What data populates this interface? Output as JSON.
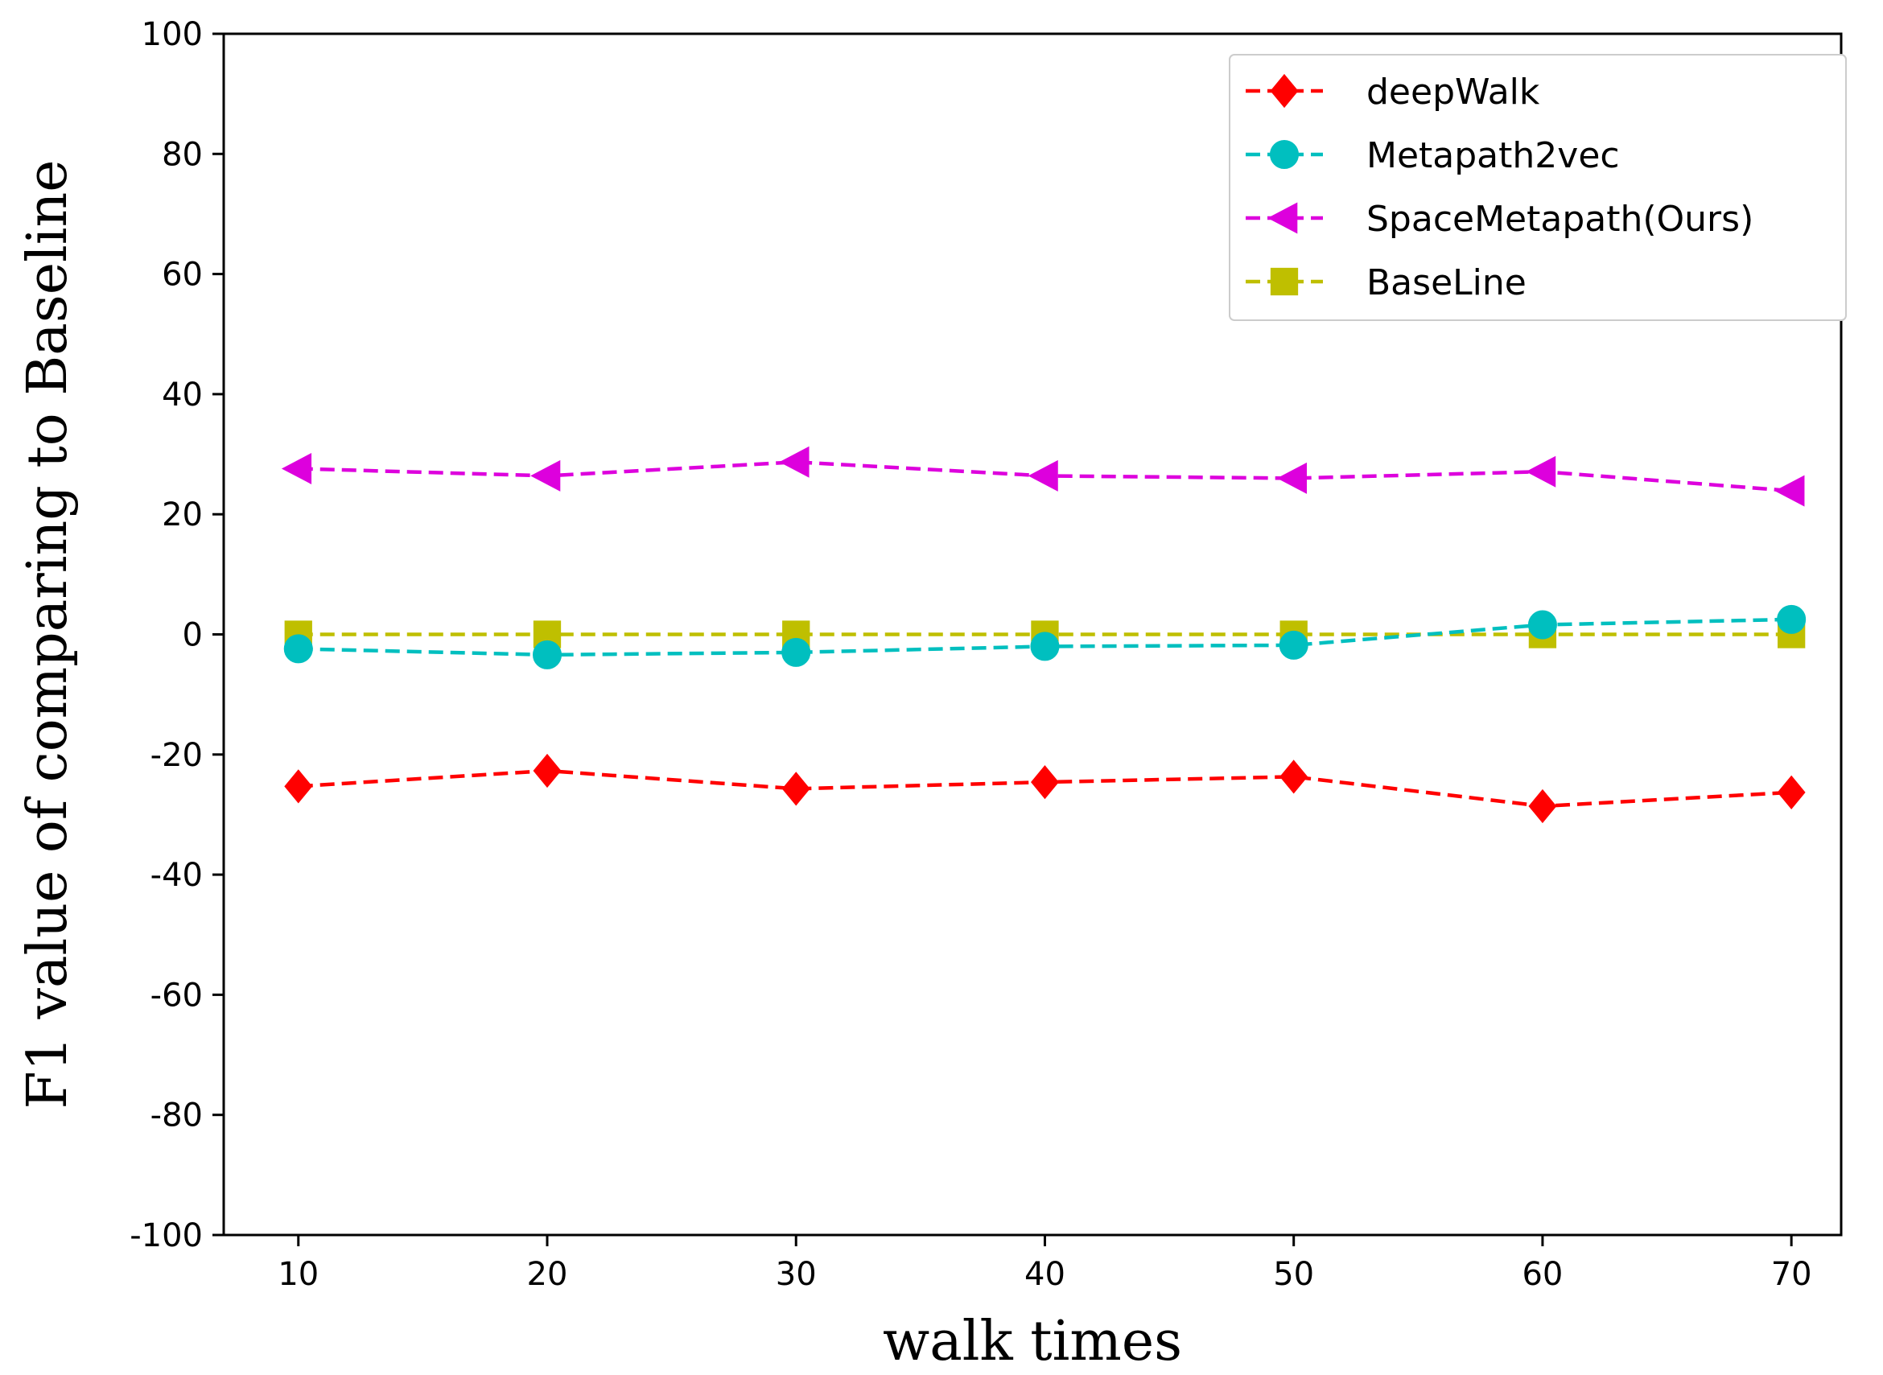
{
  "chart_data": {
    "type": "line",
    "title": "",
    "xlabel": "walk times",
    "ylabel": "F1 value of comparing to Baseline",
    "x": [
      10,
      20,
      30,
      40,
      50,
      60,
      70
    ],
    "xlim": [
      7,
      72
    ],
    "ylim": [
      -100,
      100
    ],
    "xticks": [
      "10",
      "20",
      "30",
      "40",
      "50",
      "60",
      "70"
    ],
    "yticks": [
      "100",
      "80",
      "60",
      "40",
      "20",
      "0",
      "-20",
      "-40",
      "-60",
      "-80",
      "-100"
    ],
    "ytick_values": [
      100,
      80,
      60,
      40,
      20,
      0,
      -20,
      -40,
      -60,
      -80,
      -100
    ],
    "grid": false,
    "legend_position": "top-right",
    "series": [
      {
        "name": "deepWalk",
        "color": "#ff0000",
        "marker": "diamond",
        "line_style": "dashed",
        "values": [
          -25.3,
          -22.7,
          -25.7,
          -24.6,
          -23.7,
          -28.6,
          -26.3
        ]
      },
      {
        "name": "Metapath2vec",
        "color": "#00bfbf",
        "marker": "circle",
        "line_style": "dashed",
        "values": [
          -2.4,
          -3.4,
          -3.0,
          -2.0,
          -1.8,
          1.6,
          2.5
        ]
      },
      {
        "name": "SpaceMetapath(Ours)",
        "color": "#dd00dd",
        "marker": "triangle-left",
        "line_style": "dashed",
        "values": [
          27.6,
          26.4,
          28.7,
          26.4,
          26.0,
          27.1,
          23.9
        ]
      },
      {
        "name": "BaseLine",
        "color": "#bfbf00",
        "marker": "square",
        "line_style": "dashed",
        "values": [
          0,
          0,
          0,
          0,
          0,
          0,
          0
        ]
      }
    ]
  }
}
